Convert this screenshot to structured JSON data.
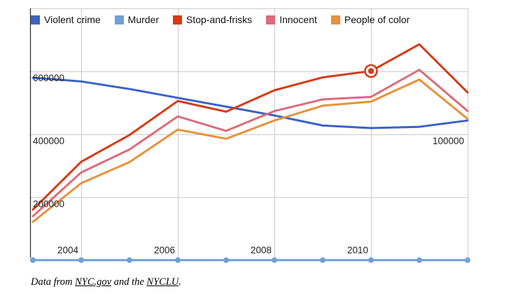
{
  "chart_data": {
    "type": "line",
    "title": "",
    "x": [
      2003,
      2004,
      2005,
      2006,
      2007,
      2008,
      2009,
      2010,
      2011,
      2012
    ],
    "x_axis": {
      "tick_labels": [
        "2004",
        "2006",
        "2008",
        "2010"
      ],
      "tick_values": [
        2004,
        2006,
        2008,
        2010
      ]
    },
    "left_axis": {
      "tick_labels": [
        "200000",
        "400000",
        "600000"
      ],
      "tick_values": [
        200000,
        400000,
        600000
      ],
      "range": [
        0,
        800000
      ]
    },
    "right_axis": {
      "tick_labels": [
        "100000"
      ],
      "tick_values": [
        100000
      ],
      "range": [
        0,
        200000
      ]
    },
    "grid": true,
    "legend_position": "top",
    "series": [
      {
        "name": "Violent crime",
        "color": "#3B63C4",
        "axis": "right",
        "values": [
          145000,
          142000,
          136000,
          129000,
          122000,
          115000,
          107000,
          105000,
          106000,
          111000
        ]
      },
      {
        "name": "Murder",
        "color": "#6F9FD8",
        "axis": "left",
        "point_markers": true,
        "note": "flat along the baseline; values too small to read at this scale",
        "values": [
          500,
          500,
          500,
          500,
          500,
          500,
          500,
          500,
          500,
          500
        ]
      },
      {
        "name": "Stop-and-frisks",
        "color": "#D93A12",
        "axis": "left",
        "values": [
          161000,
          313000,
          398000,
          506000,
          472000,
          540000,
          581000,
          601000,
          686000,
          533000
        ]
      },
      {
        "name": "Innocent",
        "color": "#DD6B78",
        "axis": "left",
        "values": [
          140000,
          279000,
          352000,
          457000,
          411000,
          474000,
          511000,
          519000,
          605000,
          474000
        ]
      },
      {
        "name": "People of color",
        "color": "#E8913C",
        "axis": "left",
        "values": [
          122000,
          245000,
          312000,
          415000,
          386000,
          444000,
          491000,
          504000,
          574000,
          449000
        ]
      }
    ],
    "highlighted_point": {
      "series": "Stop-and-frisks",
      "year": 2010,
      "value": 601000
    }
  },
  "colors": {
    "grid": "#CCCCCC",
    "axis_line": "#333333",
    "tick_text": "#222222",
    "highlight_ring": "#D93A12"
  },
  "caption": {
    "prefix": "Data from ",
    "link1": "NYC.gov",
    "middle": " and the ",
    "link2": "NYCLU",
    "suffix": "."
  }
}
